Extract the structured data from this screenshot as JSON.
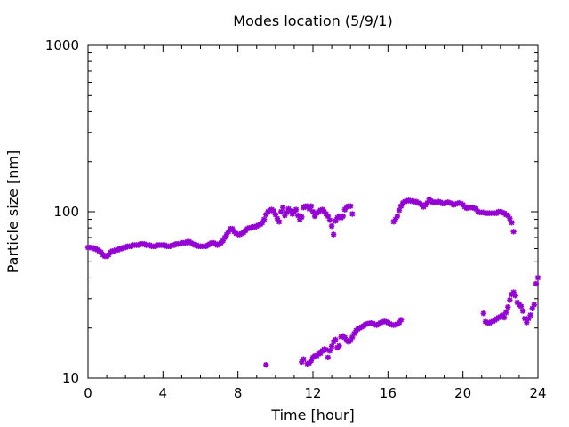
{
  "chart_data": {
    "type": "scatter",
    "title": "Modes location (5/9/1)",
    "xlabel": "Time [hour]",
    "ylabel": "Particle size [nm]",
    "xlim": [
      0,
      24
    ],
    "ylim": [
      10,
      1000
    ],
    "yscale": "log",
    "grid": false,
    "legend": "none",
    "marker_color": "#9400d3",
    "x_ticks": [
      "0",
      "4",
      "8",
      "12",
      "16",
      "20",
      "24"
    ],
    "y_ticks": [
      "10",
      "100",
      "1000"
    ],
    "series": [
      {
        "points": [
          [
            0.0,
            61
          ],
          [
            0.1,
            61
          ],
          [
            0.2,
            61
          ],
          [
            0.3,
            60
          ],
          [
            0.4,
            60
          ],
          [
            0.5,
            59
          ],
          [
            0.6,
            58
          ],
          [
            0.7,
            57
          ],
          [
            0.8,
            55
          ],
          [
            0.9,
            54
          ],
          [
            1.0,
            54
          ],
          [
            1.1,
            55
          ],
          [
            1.2,
            57
          ],
          [
            1.3,
            58
          ],
          [
            1.4,
            58
          ],
          [
            1.5,
            59
          ],
          [
            1.6,
            59
          ],
          [
            1.7,
            60
          ],
          [
            1.8,
            60
          ],
          [
            1.9,
            61
          ],
          [
            2.0,
            61
          ],
          [
            2.1,
            62
          ],
          [
            2.2,
            62
          ],
          [
            2.3,
            62
          ],
          [
            2.4,
            63
          ],
          [
            2.5,
            63
          ],
          [
            2.6,
            63
          ],
          [
            2.7,
            63
          ],
          [
            2.8,
            64
          ],
          [
            2.9,
            64
          ],
          [
            3.0,
            64
          ],
          [
            3.1,
            63
          ],
          [
            3.2,
            63
          ],
          [
            3.3,
            63
          ],
          [
            3.4,
            62
          ],
          [
            3.5,
            62
          ],
          [
            3.6,
            62
          ],
          [
            3.7,
            63
          ],
          [
            3.8,
            63
          ],
          [
            3.9,
            63
          ],
          [
            4.0,
            63
          ],
          [
            4.1,
            63
          ],
          [
            4.2,
            62
          ],
          [
            4.3,
            62
          ],
          [
            4.4,
            62
          ],
          [
            4.5,
            63
          ],
          [
            4.6,
            63
          ],
          [
            4.7,
            64
          ],
          [
            4.8,
            64
          ],
          [
            4.9,
            64
          ],
          [
            5.0,
            65
          ],
          [
            5.1,
            65
          ],
          [
            5.2,
            65
          ],
          [
            5.3,
            66
          ],
          [
            5.4,
            66
          ],
          [
            5.5,
            65
          ],
          [
            5.6,
            64
          ],
          [
            5.7,
            63
          ],
          [
            5.8,
            63
          ],
          [
            5.9,
            62
          ],
          [
            6.0,
            62
          ],
          [
            6.1,
            62
          ],
          [
            6.2,
            62
          ],
          [
            6.3,
            62
          ],
          [
            6.4,
            63
          ],
          [
            6.5,
            64
          ],
          [
            6.6,
            65
          ],
          [
            6.7,
            65
          ],
          [
            6.8,
            64
          ],
          [
            6.9,
            63
          ],
          [
            7.0,
            64
          ],
          [
            7.1,
            65
          ],
          [
            7.2,
            67
          ],
          [
            7.3,
            70
          ],
          [
            7.4,
            73
          ],
          [
            7.5,
            76
          ],
          [
            7.6,
            79
          ],
          [
            7.7,
            79
          ],
          [
            7.8,
            76
          ],
          [
            7.9,
            74
          ],
          [
            8.0,
            73
          ],
          [
            8.1,
            73
          ],
          [
            8.2,
            74
          ],
          [
            8.3,
            75
          ],
          [
            8.4,
            77
          ],
          [
            8.5,
            79
          ],
          [
            8.6,
            80
          ],
          [
            8.7,
            80
          ],
          [
            8.8,
            81
          ],
          [
            8.9,
            81
          ],
          [
            9.0,
            82
          ],
          [
            9.1,
            83
          ],
          [
            9.2,
            84
          ],
          [
            9.3,
            86
          ],
          [
            9.4,
            90
          ],
          [
            9.5,
            96
          ],
          [
            9.6,
            100
          ],
          [
            9.7,
            102
          ],
          [
            9.8,
            103
          ],
          [
            9.9,
            101
          ],
          [
            10.0,
            96
          ],
          [
            10.1,
            91
          ],
          [
            10.2,
            87
          ],
          [
            10.3,
            100
          ],
          [
            10.4,
            106
          ],
          [
            10.5,
            95
          ],
          [
            10.6,
            99
          ],
          [
            10.7,
            104
          ],
          [
            10.8,
            101
          ],
          [
            10.9,
            97
          ],
          [
            11.0,
            100
          ],
          [
            11.1,
            103
          ],
          [
            11.2,
            95
          ],
          [
            11.3,
            90
          ],
          [
            11.4,
            93
          ],
          [
            11.5,
            106
          ],
          [
            11.6,
            108
          ],
          [
            11.7,
            108
          ],
          [
            11.8,
            104
          ],
          [
            11.9,
            108
          ],
          [
            12.0,
            100
          ],
          [
            12.1,
            94
          ],
          [
            12.2,
            98
          ],
          [
            12.3,
            100
          ],
          [
            12.4,
            102
          ],
          [
            12.5,
            103
          ],
          [
            12.6,
            100
          ],
          [
            12.7,
            97
          ],
          [
            12.8,
            94
          ],
          [
            12.9,
            89
          ],
          [
            13.0,
            82
          ],
          [
            13.1,
            73
          ],
          [
            13.2,
            88
          ],
          [
            13.3,
            92
          ],
          [
            13.4,
            94
          ],
          [
            13.5,
            92
          ],
          [
            13.6,
            94
          ],
          [
            13.7,
            103
          ],
          [
            13.8,
            107
          ],
          [
            13.9,
            108
          ],
          [
            14.0,
            108
          ],
          [
            14.1,
            97
          ],
          [
            16.3,
            87
          ],
          [
            16.4,
            90
          ],
          [
            16.5,
            94
          ],
          [
            16.6,
            102
          ],
          [
            16.7,
            108
          ],
          [
            16.8,
            113
          ],
          [
            16.9,
            115
          ],
          [
            17.0,
            116
          ],
          [
            17.1,
            117
          ],
          [
            17.2,
            116
          ],
          [
            17.3,
            116
          ],
          [
            17.4,
            115
          ],
          [
            17.5,
            115
          ],
          [
            17.6,
            113
          ],
          [
            17.7,
            112
          ],
          [
            17.8,
            110
          ],
          [
            17.9,
            107
          ],
          [
            18.0,
            110
          ],
          [
            18.1,
            113
          ],
          [
            18.2,
            119
          ],
          [
            18.3,
            116
          ],
          [
            18.4,
            114
          ],
          [
            18.5,
            114
          ],
          [
            18.6,
            114
          ],
          [
            18.7,
            115
          ],
          [
            18.8,
            114
          ],
          [
            18.9,
            112
          ],
          [
            19.0,
            112
          ],
          [
            19.1,
            113
          ],
          [
            19.2,
            114
          ],
          [
            19.3,
            113
          ],
          [
            19.4,
            112
          ],
          [
            19.5,
            110
          ],
          [
            19.6,
            111
          ],
          [
            19.7,
            112
          ],
          [
            19.8,
            113
          ],
          [
            19.9,
            112
          ],
          [
            20.0,
            110
          ],
          [
            20.1,
            107
          ],
          [
            20.2,
            105
          ],
          [
            20.3,
            106
          ],
          [
            20.4,
            106
          ],
          [
            20.5,
            106
          ],
          [
            20.6,
            105
          ],
          [
            20.7,
            104
          ],
          [
            20.8,
            100
          ],
          [
            20.9,
            99
          ],
          [
            21.0,
            99
          ],
          [
            21.1,
            99
          ],
          [
            21.2,
            98
          ],
          [
            21.3,
            98
          ],
          [
            21.4,
            98
          ],
          [
            21.5,
            98
          ],
          [
            21.6,
            98
          ],
          [
            21.7,
            98
          ],
          [
            21.8,
            98
          ],
          [
            21.9,
            100
          ],
          [
            22.0,
            100
          ],
          [
            22.1,
            99
          ],
          [
            22.2,
            98
          ],
          [
            22.3,
            96
          ],
          [
            22.4,
            95
          ],
          [
            22.5,
            91
          ],
          [
            22.6,
            86
          ],
          [
            22.7,
            76
          ]
        ]
      },
      {
        "points": [
          [
            9.5,
            12
          ],
          [
            11.4,
            12.5
          ],
          [
            11.5,
            13
          ],
          [
            11.7,
            12.2
          ],
          [
            11.8,
            12.3
          ],
          [
            11.9,
            12.7
          ],
          [
            12.0,
            13.3
          ],
          [
            12.1,
            13.6
          ],
          [
            12.2,
            13.6
          ],
          [
            12.3,
            14.0
          ],
          [
            12.4,
            14.1
          ],
          [
            12.5,
            14.6
          ],
          [
            12.6,
            14.9
          ],
          [
            12.7,
            14.8
          ],
          [
            12.8,
            13.3
          ],
          [
            12.9,
            14.6
          ],
          [
            13.0,
            15.5
          ],
          [
            13.1,
            16.5
          ],
          [
            13.2,
            17.0
          ],
          [
            13.3,
            15.2
          ],
          [
            13.4,
            15.6
          ],
          [
            13.5,
            17.7
          ],
          [
            13.6,
            17.9
          ],
          [
            13.7,
            17.5
          ],
          [
            13.8,
            16.8
          ],
          [
            13.9,
            16.5
          ],
          [
            14.0,
            16.8
          ],
          [
            14.1,
            17.6
          ],
          [
            14.2,
            18.5
          ],
          [
            14.3,
            19.3
          ],
          [
            14.4,
            19.7
          ],
          [
            14.5,
            20.0
          ],
          [
            14.6,
            20.3
          ],
          [
            14.7,
            20.6
          ],
          [
            14.8,
            21.0
          ],
          [
            14.9,
            21.2
          ],
          [
            15.0,
            21.3
          ],
          [
            15.1,
            21.4
          ],
          [
            15.2,
            21.3
          ],
          [
            15.3,
            20.9
          ],
          [
            15.4,
            20.8
          ],
          [
            15.5,
            21.1
          ],
          [
            15.6,
            21.5
          ],
          [
            15.7,
            21.7
          ],
          [
            15.8,
            21.9
          ],
          [
            15.9,
            21.8
          ],
          [
            16.0,
            21.5
          ],
          [
            16.1,
            21.2
          ],
          [
            16.2,
            20.9
          ],
          [
            16.3,
            20.8
          ],
          [
            16.4,
            20.9
          ],
          [
            16.5,
            21.1
          ],
          [
            16.6,
            21.5
          ],
          [
            16.7,
            22.4
          ],
          [
            21.1,
            24.5
          ],
          [
            21.2,
            21.8
          ],
          [
            21.3,
            21.5
          ],
          [
            21.4,
            21.4
          ],
          [
            21.5,
            21.7
          ],
          [
            21.6,
            21.9
          ],
          [
            21.7,
            22.3
          ],
          [
            21.8,
            22.7
          ],
          [
            21.9,
            23.1
          ],
          [
            22.0,
            23.4
          ],
          [
            22.1,
            23.8
          ],
          [
            22.2,
            23.1
          ],
          [
            22.3,
            24.8
          ],
          [
            22.4,
            26.7
          ],
          [
            22.5,
            29.4
          ],
          [
            22.6,
            31.8
          ],
          [
            22.7,
            32.8
          ],
          [
            22.8,
            31.3
          ],
          [
            22.9,
            28.5
          ],
          [
            23.0,
            27.6
          ],
          [
            23.1,
            27.0
          ],
          [
            23.2,
            25.3
          ],
          [
            23.3,
            22.8
          ],
          [
            23.4,
            21.6
          ],
          [
            23.5,
            22.8
          ],
          [
            23.6,
            23.9
          ],
          [
            23.7,
            26.2
          ],
          [
            23.8,
            27.6
          ],
          [
            23.9,
            36.9
          ],
          [
            24.0,
            40.1
          ]
        ]
      }
    ]
  }
}
